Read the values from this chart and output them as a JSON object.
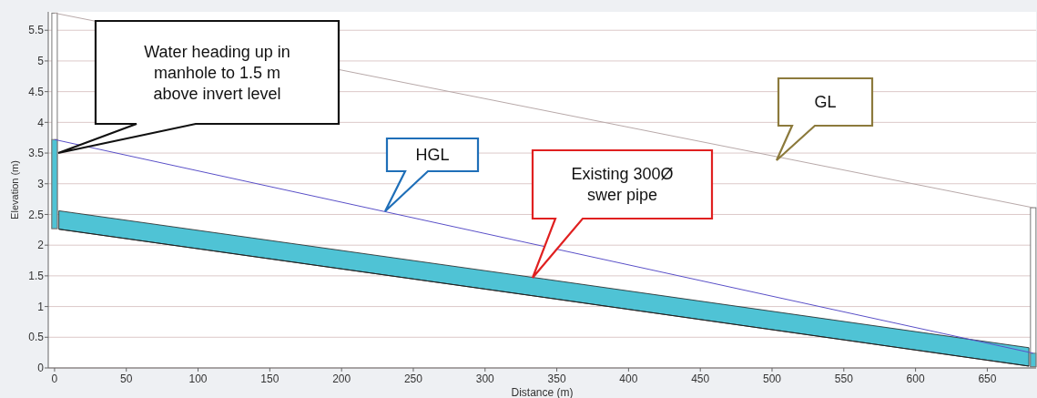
{
  "chart_data": {
    "type": "line",
    "xlabel": "Distance (m)",
    "ylabel": "Elevation (m)",
    "xlim": [
      -4.4,
      684
    ],
    "ylim": [
      0,
      5.8
    ],
    "xticks": [
      0,
      50,
      100,
      150,
      200,
      250,
      300,
      350,
      400,
      450,
      500,
      550,
      600,
      650
    ],
    "yticks": [
      0,
      0.5,
      1,
      1.5,
      2,
      2.5,
      3,
      3.5,
      4,
      4.5,
      5,
      5.5
    ],
    "grid": "y",
    "x": [
      0,
      682
    ],
    "series": [
      {
        "type": "bar",
        "color": "#ffffff",
        "base": [
          2.27,
          0.02
        ],
        "values": [
          3.51,
          2.59
        ]
      },
      {
        "type": "bar",
        "color": "#4fc3d5",
        "base": [
          2.27,
          0.02
        ],
        "values": [
          1.45,
          0.22
        ]
      },
      {
        "type": "line",
        "color": "#b8a9a9",
        "values": [
          5.78,
          2.61
        ]
      },
      {
        "type": "line",
        "color": "#222222",
        "x": [
          3,
          341,
          679
        ],
        "values": [
          2.26,
          1.15,
          0.03
        ],
        "lower": [
          2.26,
          1.15,
          0.03
        ],
        "upper": [
          2.56,
          1.45,
          0.33
        ]
      },
      {
        "color": "#5a50c8",
        "values": [
          3.72,
          0.24
        ]
      }
    ],
    "annotations": [
      "Water heading up in manhole to 1.5 m above invert level",
      "HGL",
      "GL",
      "Existing 300Ø swer pipe"
    ]
  }
}
